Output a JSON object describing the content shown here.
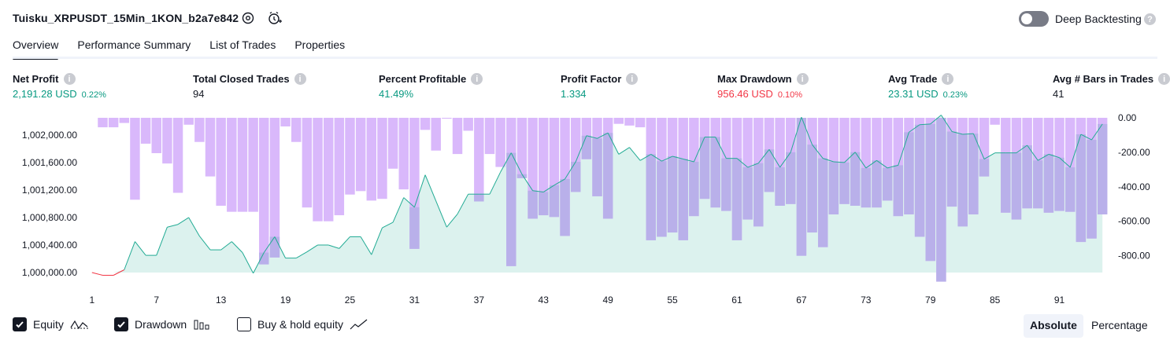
{
  "header": {
    "title": "Tuisku_XRPUSDT_15Min_1KON_b2a7e842",
    "deep_backtesting_label": "Deep Backtesting",
    "deep_backtesting_on": false
  },
  "tabs": [
    {
      "label": "Overview",
      "active": true
    },
    {
      "label": "Performance Summary",
      "active": false
    },
    {
      "label": "List of Trades",
      "active": false
    },
    {
      "label": "Properties",
      "active": false
    }
  ],
  "metrics": {
    "net_profit": {
      "label": "Net Profit",
      "value": "2,191.28 USD",
      "pct": "0.22%"
    },
    "total_closed_trades": {
      "label": "Total Closed Trades",
      "value": "94"
    },
    "percent_profitable": {
      "label": "Percent Profitable",
      "value": "41.49%"
    },
    "profit_factor": {
      "label": "Profit Factor",
      "value": "1.334"
    },
    "max_drawdown": {
      "label": "Max Drawdown",
      "value": "956.46 USD",
      "pct": "0.10%"
    },
    "avg_trade": {
      "label": "Avg Trade",
      "value": "23.31 USD",
      "pct": "0.23%"
    },
    "avg_bars": {
      "label": "Avg # Bars in Trades",
      "value": "41"
    }
  },
  "colors": {
    "equity_line": "#22ab94",
    "equity_neg_line": "#f23645",
    "equity_fill": "#d6f0eb",
    "drawdown_bar": "#d9b8fb",
    "drawdown_bar_over": "#b9b0ea",
    "axis_text": "#131722"
  },
  "chart_data": {
    "type": "area",
    "x_ticks": [
      "1",
      "7",
      "13",
      "19",
      "25",
      "31",
      "37",
      "43",
      "49",
      "55",
      "61",
      "67",
      "73",
      "79",
      "85",
      "91"
    ],
    "left_axis_ticks": [
      "1,000,000.00",
      "1,000,400.00",
      "1,000,800.00",
      "1,001,200.00",
      "1,001,600.00",
      "1,002,000.00"
    ],
    "right_axis_ticks": [
      "0.00",
      "-200.00",
      "-400.00",
      "-600.00",
      "-800.00"
    ],
    "left_ylim": [
      999920,
      1002250
    ],
    "right_ylim": [
      -956.46,
      0
    ],
    "x": [
      1,
      2,
      3,
      4,
      5,
      6,
      7,
      8,
      9,
      10,
      11,
      12,
      13,
      14,
      15,
      16,
      17,
      18,
      19,
      20,
      21,
      22,
      23,
      24,
      25,
      26,
      27,
      28,
      29,
      30,
      31,
      32,
      33,
      34,
      35,
      36,
      37,
      38,
      39,
      40,
      41,
      42,
      43,
      44,
      45,
      46,
      47,
      48,
      49,
      50,
      51,
      52,
      53,
      54,
      55,
      56,
      57,
      58,
      59,
      60,
      61,
      62,
      63,
      64,
      65,
      66,
      67,
      68,
      69,
      70,
      71,
      72,
      73,
      74,
      75,
      76,
      77,
      78,
      79,
      80,
      81,
      82,
      83,
      84,
      85,
      86,
      87,
      88,
      89,
      90,
      91,
      92,
      93,
      94,
      95
    ],
    "series": [
      {
        "name": "Equity",
        "values": [
          1000000,
          999960,
          999960,
          1000040,
          1000450,
          1000250,
          1000250,
          1000660,
          1000700,
          1000800,
          1000530,
          1000330,
          1000330,
          1000450,
          1000290,
          999990,
          1000290,
          1000520,
          1000210,
          1000210,
          1000300,
          1000400,
          1000400,
          1000350,
          1000520,
          1000520,
          1000260,
          1000650,
          1000730,
          1001090,
          1000950,
          1001420,
          1001040,
          1000660,
          1000850,
          1001140,
          1001140,
          1001140,
          1001460,
          1001740,
          1001430,
          1001190,
          1001170,
          1001270,
          1001360,
          1001610,
          1001990,
          1001950,
          1002030,
          1001720,
          1001820,
          1001630,
          1001720,
          1001620,
          1001690,
          1001650,
          1001610,
          1001970,
          1001970,
          1001660,
          1001660,
          1001530,
          1001590,
          1001790,
          1001530,
          1001750,
          1002260,
          1001860,
          1001660,
          1001610,
          1001600,
          1001750,
          1001520,
          1001630,
          1001520,
          1001560,
          1002040,
          1002150,
          1002160,
          1002290,
          1002050,
          1002010,
          1002020,
          1001650,
          1001740,
          1001740,
          1001740,
          1001850,
          1001630,
          1001720,
          1001670,
          1001530,
          1002010,
          1001930,
          1002160
        ]
      },
      {
        "name": "Drawdown",
        "values": [
          0,
          -55,
          -55,
          -30,
          -475,
          -150,
          -205,
          -265,
          -435,
          -40,
          -140,
          -340,
          -510,
          -545,
          -545,
          -545,
          -850,
          -810,
          -50,
          -140,
          -520,
          -600,
          -600,
          -565,
          -445,
          -425,
          -480,
          -470,
          -295,
          -415,
          -760,
          -70,
          -190,
          -5,
          -210,
          -75,
          -485,
          -210,
          -285,
          -860,
          -350,
          -585,
          -565,
          -575,
          -685,
          -430,
          -240,
          -455,
          -585,
          -35,
          -45,
          -55,
          -710,
          -690,
          -665,
          -710,
          -570,
          -470,
          -520,
          -540,
          -710,
          -590,
          -630,
          -430,
          -510,
          -500,
          -800,
          -665,
          -750,
          -560,
          -500,
          -510,
          -520,
          -520,
          -480,
          -570,
          -560,
          -690,
          -830,
          -950,
          -515,
          -630,
          -560,
          -340,
          -40,
          -550,
          -590,
          -525,
          -525,
          -550,
          -540,
          -545,
          -720,
          -700,
          -560
        ]
      }
    ],
    "legend": [
      "Equity",
      "Drawdown",
      "Buy & hold equity"
    ],
    "grid": false
  },
  "footer": {
    "equity_label": "Equity",
    "equity_checked": true,
    "drawdown_label": "Drawdown",
    "drawdown_checked": true,
    "buyhold_label": "Buy & hold equity",
    "buyhold_checked": false,
    "absolute_label": "Absolute",
    "percentage_label": "Percentage",
    "mode": "Absolute"
  }
}
